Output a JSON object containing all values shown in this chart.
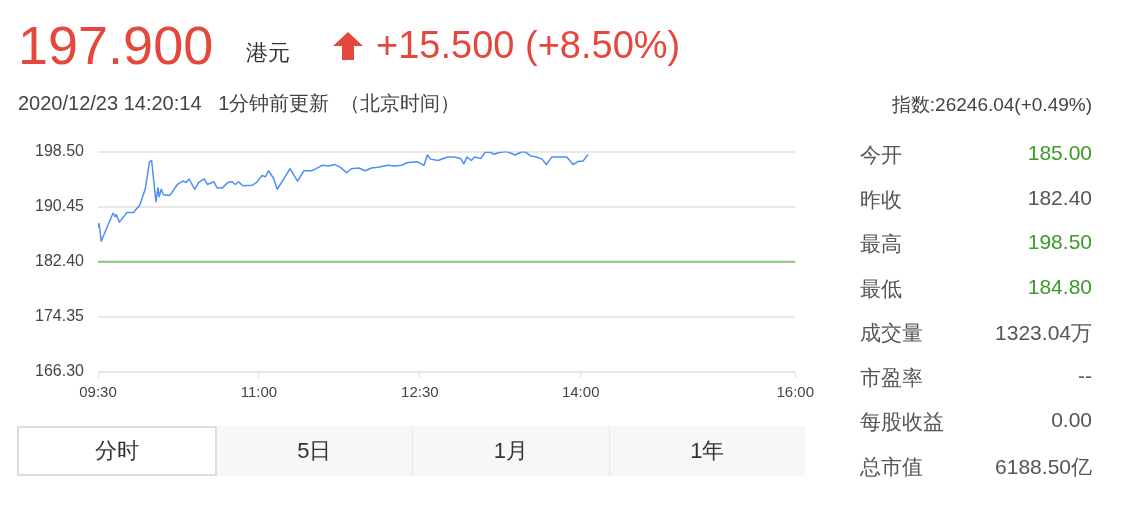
{
  "chart_data": {
    "type": "line",
    "annotations": [
      "197.900",
      "港元",
      "+15.500 (+8.50%)",
      "2020/12/23 14:20:14   1分钟前更新  （北京时间）",
      "指数:26246.04(+0.49%)",
      "今开",
      "185.00",
      "昨收",
      "182.40",
      "最高",
      "198.50",
      "最低",
      "184.80",
      "成交量",
      "1323.04万",
      "市盈率",
      "--",
      "每股收益",
      "0.00",
      "总市值",
      "6188.50亿",
      "分时",
      "5日",
      "1月",
      "1年"
    ],
    "x": [
      9.5,
      9.51,
      9.53,
      9.57,
      9.64,
      9.66,
      9.67,
      9.7,
      9.77,
      9.83,
      9.89,
      9.94,
      9.98,
      10.0,
      10.02,
      10.04,
      10.06,
      10.07,
      10.09,
      10.11,
      10.17,
      10.24,
      10.29,
      10.32,
      10.35,
      10.4,
      10.44,
      10.49,
      10.52,
      10.58,
      10.61,
      10.66,
      10.71,
      10.75,
      10.78,
      10.81,
      10.85,
      10.94,
      10.98,
      11.03,
      11.06,
      11.09,
      11.14,
      11.17,
      11.22,
      11.29,
      11.36,
      11.42,
      11.49,
      11.52,
      11.59,
      11.65,
      11.71,
      11.76,
      11.82,
      11.86,
      11.93,
      11.99,
      12.05,
      12.11,
      12.2,
      12.27,
      12.33,
      12.39,
      12.48,
      12.54,
      12.57,
      12.6,
      12.67,
      12.76,
      12.82,
      12.88,
      12.91,
      12.94,
      12.98,
      13.01,
      13.07,
      13.11,
      13.16,
      13.19,
      13.25,
      13.31,
      13.39,
      13.44,
      13.48,
      13.53,
      13.59,
      13.64,
      13.68,
      13.73,
      13.87,
      13.93,
      13.98,
      14.02,
      14.07
    ],
    "series": [
      {
        "color": "#4d8ef7",
        "values": [
          187.4,
          188.0,
          185.4,
          186.9,
          189.5,
          189.0,
          189.3,
          188.2,
          189.6,
          189.6,
          190.7,
          193.0,
          197.0,
          197.2,
          194.2,
          191.2,
          193.2,
          191.9,
          193.0,
          192.2,
          192.1,
          193.7,
          194.2,
          194.0,
          194.5,
          193.0,
          194.0,
          194.5,
          193.7,
          194.1,
          193.2,
          193.2,
          194.0,
          194.1,
          193.7,
          194.1,
          193.5,
          193.6,
          194.0,
          195.0,
          194.8,
          195.7,
          194.5,
          193.0,
          194.2,
          196.0,
          194.2,
          195.7,
          195.7,
          195.9,
          196.5,
          196.4,
          196.6,
          196.2,
          195.4,
          196.0,
          196.1,
          195.7,
          196.1,
          196.2,
          196.5,
          196.4,
          196.5,
          196.9,
          197.0,
          196.5,
          198.0,
          197.4,
          197.2,
          197.7,
          197.7,
          197.5,
          196.7,
          197.7,
          197.2,
          197.7,
          197.5,
          198.4,
          198.4,
          198.1,
          198.4,
          198.5,
          198.0,
          198.4,
          198.5,
          197.9,
          197.7,
          197.4,
          196.6,
          197.7,
          197.7,
          196.6,
          197.1,
          197.1,
          198.1
        ]
      }
    ],
    "xlim": [
      9.5,
      16
    ],
    "xticks": [
      {
        "value": 9.5,
        "label": "09:30"
      },
      {
        "value": 11,
        "label": "11:00"
      },
      {
        "value": 12.5,
        "label": "12:30"
      },
      {
        "value": 14,
        "label": "14:00"
      },
      {
        "value": 16,
        "label": "16:00"
      }
    ],
    "ylim": [
      166.3,
      198.5
    ],
    "yticks": [
      {
        "value": 198.5,
        "label": "198.50"
      },
      {
        "value": 190.45,
        "label": "190.45"
      },
      {
        "value": 182.4,
        "label": "182.40"
      },
      {
        "value": 174.35,
        "label": "174.35"
      },
      {
        "value": 166.3,
        "label": "166.30"
      }
    ],
    "ref_lines": [
      {
        "axis": "y",
        "value": 182.4,
        "color": "#8cc67f"
      }
    ],
    "grid": "y",
    "marker": "none",
    "line_style": "solid",
    "legend": false
  }
}
